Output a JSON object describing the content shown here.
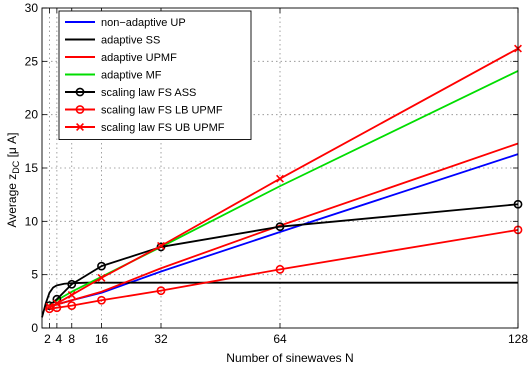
{
  "chart_data": {
    "type": "line",
    "xlabel": "Number of sinewaves N",
    "ylabel": "Average z",
    "ylabel_sub": "DC",
    "ylabel_unit": " [μ A]",
    "xlim": [
      0,
      128
    ],
    "ylim": [
      0,
      30
    ],
    "xticks": [
      2,
      4,
      8,
      16,
      32,
      64,
      128
    ],
    "yticks": [
      0,
      5,
      10,
      15,
      20,
      25,
      30
    ],
    "grid": true,
    "legend_position": "top-left",
    "series": [
      {
        "name": "non−adaptive UP",
        "color": "#0000ff",
        "marker": "none",
        "x": [
          2,
          4,
          8,
          16,
          32,
          64,
          128
        ],
        "y": [
          2.1,
          2.2,
          2.6,
          3.3,
          5.3,
          9.0,
          16.3
        ]
      },
      {
        "name": "adaptive SS",
        "color": "#000000",
        "marker": "none",
        "x": [
          0,
          1,
          2,
          3,
          4,
          6,
          8,
          12,
          16,
          32,
          64,
          128
        ],
        "y": [
          1.0,
          2.3,
          3.3,
          3.8,
          4.0,
          4.15,
          4.2,
          4.25,
          4.25,
          4.25,
          4.25,
          4.25
        ]
      },
      {
        "name": "adaptive UPMF",
        "color": "#ff0000",
        "marker": "none",
        "x": [
          2,
          4,
          8,
          16,
          32,
          64,
          128
        ],
        "y": [
          2.0,
          2.2,
          2.6,
          3.4,
          5.6,
          9.6,
          17.3
        ]
      },
      {
        "name": "adaptive MF",
        "color": "#00dd00",
        "marker": "none",
        "x": [
          2,
          4,
          8,
          16,
          32,
          64,
          128
        ],
        "y": [
          2.2,
          2.6,
          3.4,
          4.8,
          7.6,
          13.3,
          24.1
        ]
      },
      {
        "name": "scaling law FS ASS",
        "color": "#000000",
        "marker": "circle",
        "x": [
          2,
          4,
          8,
          16,
          32,
          64,
          128
        ],
        "y": [
          2.1,
          2.7,
          4.1,
          5.8,
          7.6,
          9.5,
          11.6
        ]
      },
      {
        "name": "scaling law FS LB UPMF",
        "color": "#ff0000",
        "marker": "circle",
        "x": [
          2,
          4,
          8,
          16,
          32,
          64,
          128
        ],
        "y": [
          1.8,
          1.9,
          2.1,
          2.6,
          3.5,
          5.5,
          9.2
        ]
      },
      {
        "name": "scaling law FS UB UPMF",
        "color": "#ff0000",
        "marker": "x",
        "x": [
          2,
          4,
          8,
          16,
          32,
          64,
          128
        ],
        "y": [
          2.0,
          2.3,
          3.1,
          4.7,
          7.7,
          14.0,
          26.2
        ]
      }
    ]
  }
}
